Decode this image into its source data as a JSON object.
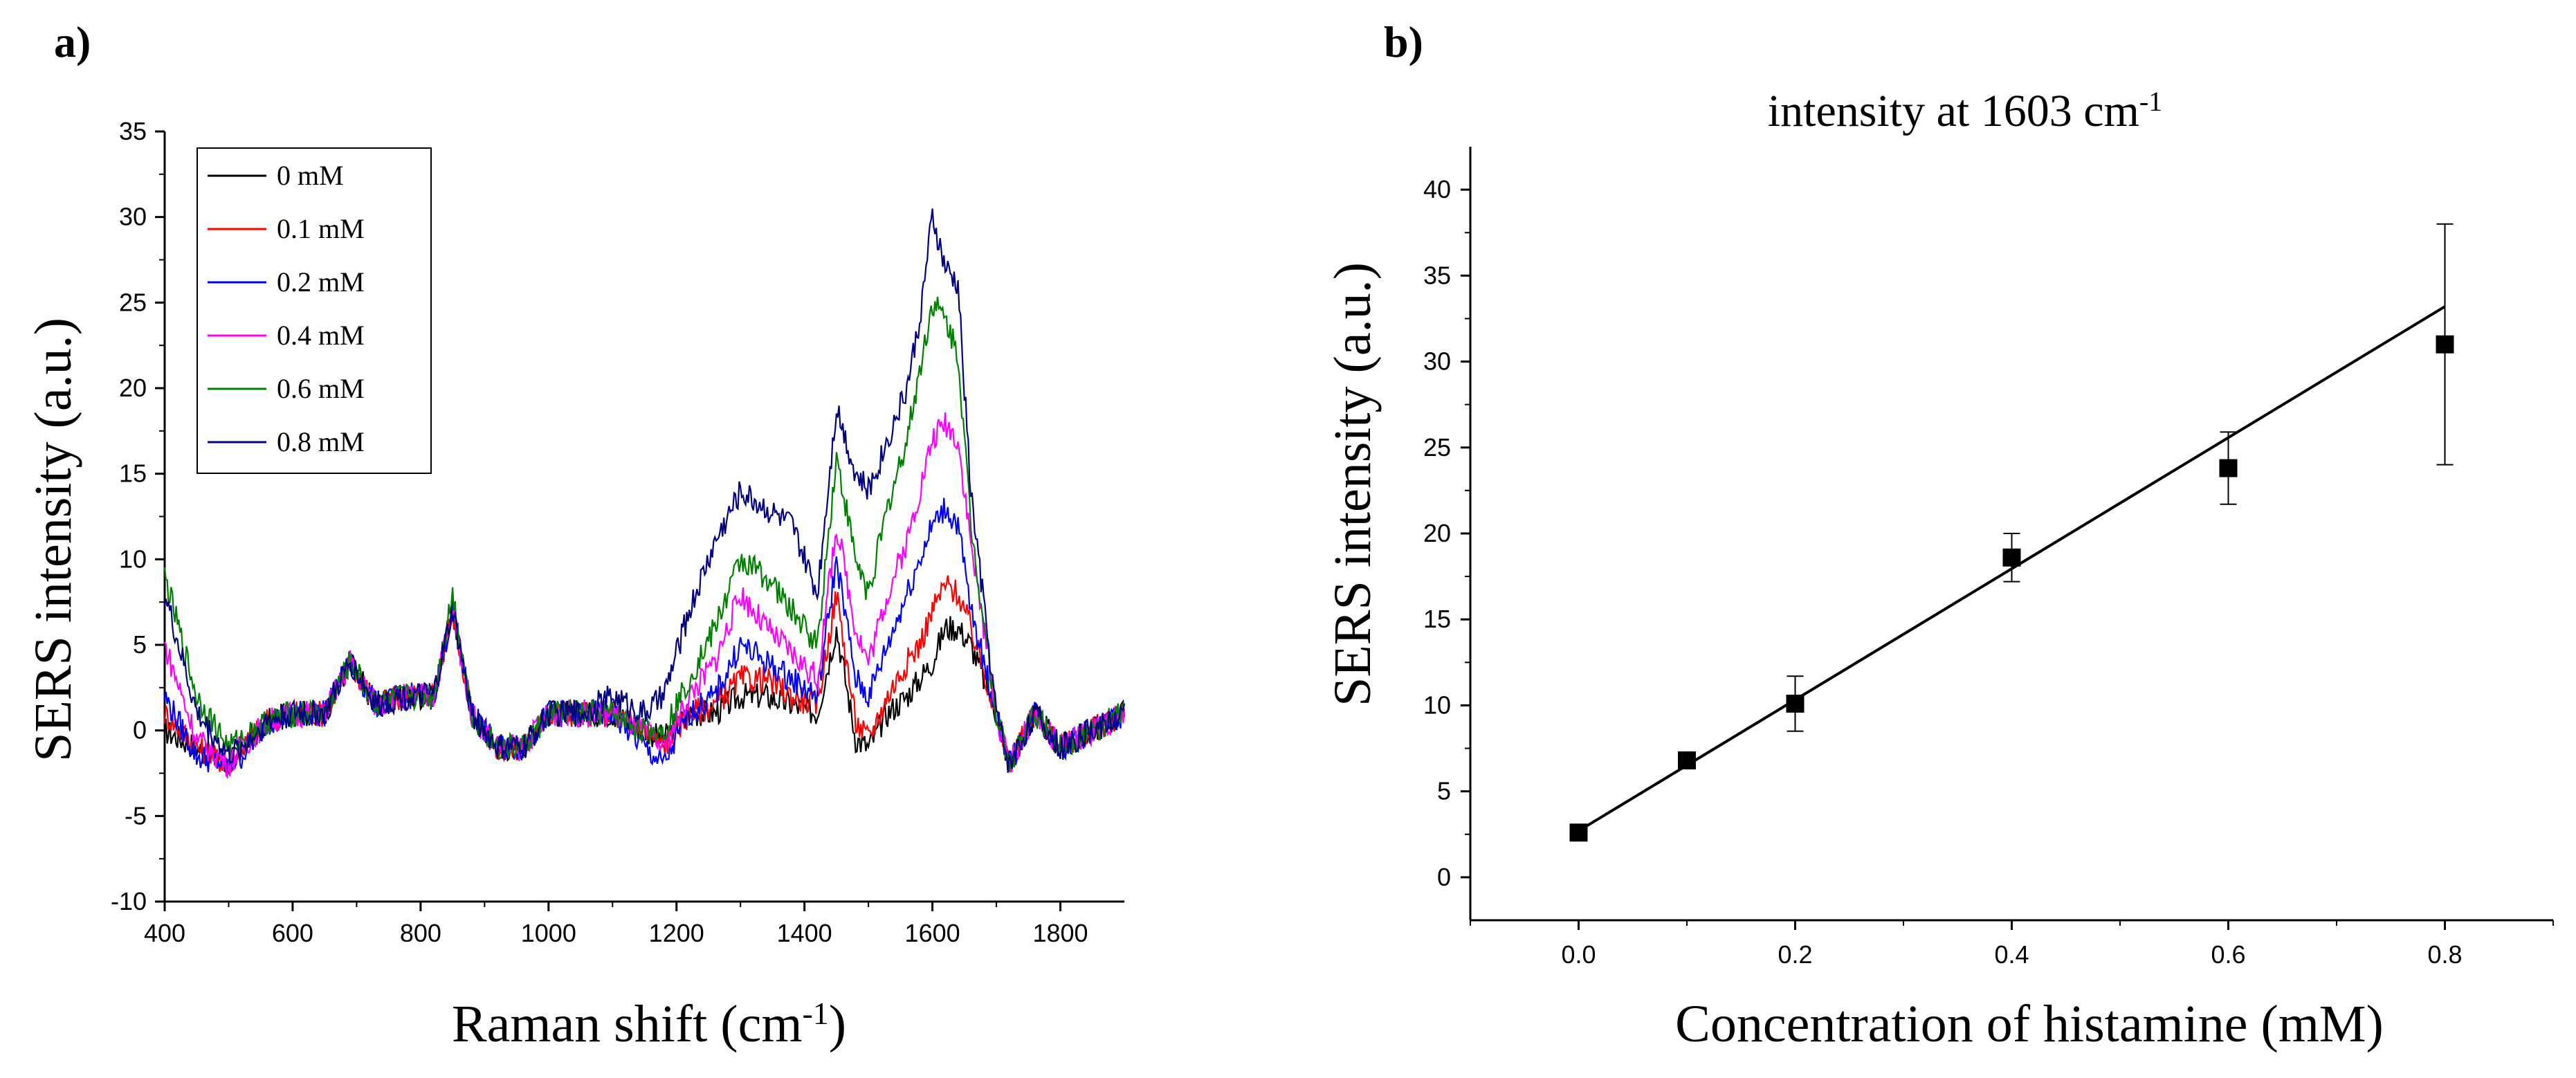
{
  "chart_data": [
    {
      "panel_label": "a)",
      "type": "line",
      "xlabel": "Raman shift (cm-1)",
      "xlabel_main": "Raman shift (cm",
      "xlabel_sup": "-1",
      "xlabel_end": ")",
      "ylabel": "SERS intensity (a.u.)",
      "xlim": [
        400,
        1900
      ],
      "ylim": [
        -10,
        35
      ],
      "xticks": [
        400,
        600,
        800,
        1000,
        1200,
        1400,
        1600,
        1800
      ],
      "yticks": [
        -10,
        -5,
        0,
        5,
        10,
        15,
        20,
        25,
        30,
        35
      ],
      "legend_position": "top-left",
      "x": [
        400,
        450,
        500,
        520,
        560,
        600,
        650,
        690,
        730,
        780,
        820,
        850,
        880,
        920,
        960,
        1000,
        1050,
        1100,
        1150,
        1180,
        1220,
        1260,
        1300,
        1340,
        1380,
        1420,
        1450,
        1480,
        1500,
        1530,
        1560,
        1580,
        1600,
        1620,
        1640,
        1660,
        1700,
        1720,
        1760,
        1800,
        1850,
        1900
      ],
      "series": [
        {
          "name": "0 mM",
          "color": "#000000",
          "values": [
            0,
            -1,
            -2,
            -1,
            0.5,
            1,
            1,
            4,
            1.5,
            2,
            2,
            7,
            1,
            -1,
            -1,
            1,
            1,
            1,
            0,
            -0.5,
            1,
            1,
            2,
            2,
            1.5,
            1,
            6,
            -0.5,
            -1,
            1,
            2,
            3,
            4,
            6,
            6,
            5,
            1,
            -2,
            1,
            -1,
            0,
            1
          ]
        },
        {
          "name": "0.1 mM",
          "color": "#ff0000",
          "values": [
            1,
            -1,
            -2,
            -1,
            0.5,
            1,
            1,
            4,
            1.5,
            2,
            2,
            7,
            1,
            -1,
            -1,
            1,
            1,
            1,
            0,
            -1,
            1,
            1.5,
            3,
            3,
            2,
            1.5,
            8,
            0.5,
            -0.5,
            2,
            4,
            5,
            7,
            8.5,
            8,
            6,
            1,
            -2,
            1,
            -1,
            0,
            1
          ]
        },
        {
          "name": "0.2 mM",
          "color": "#0000ff",
          "values": [
            2,
            -1.5,
            -2,
            -1.5,
            0.5,
            1,
            1,
            4,
            1.5,
            2,
            2,
            7,
            1,
            -1,
            -1,
            1,
            1,
            1,
            -1,
            -2,
            1,
            2,
            5,
            4,
            3,
            2,
            10,
            3,
            2,
            5,
            8,
            10,
            12,
            13,
            12,
            7,
            1,
            -2,
            1,
            -1,
            0,
            1
          ]
        },
        {
          "name": "0.4 mM",
          "color": "#ff00ff",
          "values": [
            5,
            -0.5,
            -2,
            -1,
            0.5,
            1,
            1,
            4,
            1.5,
            2,
            2,
            7,
            1,
            -1,
            -1,
            1,
            1,
            1,
            0,
            -1,
            2,
            4,
            8,
            6,
            4.5,
            3,
            12,
            6,
            4,
            8,
            11,
            14,
            17,
            18,
            17,
            11,
            1,
            -2,
            1,
            -1,
            0,
            1
          ]
        },
        {
          "name": "0.6 mM",
          "color": "#008000",
          "values": [
            9,
            2,
            -1,
            -0.5,
            0.5,
            1,
            1,
            4,
            1.5,
            2,
            2,
            8,
            1,
            -1,
            -1,
            1,
            1,
            1,
            0,
            0,
            3,
            6,
            10,
            9,
            7,
            5,
            16,
            10,
            8,
            13,
            17,
            21,
            25,
            24,
            22,
            12,
            1,
            -2,
            1,
            -1,
            0,
            1
          ]
        },
        {
          "name": "0.8 mM",
          "color": "#000080",
          "values": [
            8,
            1,
            -1.5,
            -1,
            0.5,
            1,
            1,
            4,
            1.5,
            2,
            2,
            7,
            1,
            -1,
            -1,
            1,
            1,
            2,
            1,
            2,
            7,
            11,
            14,
            13,
            12,
            8,
            19,
            15,
            14,
            17,
            20,
            24,
            30,
            27,
            26,
            14,
            1,
            -2,
            1,
            -1,
            0,
            1
          ]
        }
      ]
    },
    {
      "panel_label": "b)",
      "type": "scatter",
      "title": "intensity at 1603 cm-1",
      "title_main": "intensity at 1603 cm",
      "title_sup": "-1",
      "xlabel": "Concentration of histamine (mM)",
      "ylabel": "SERS intensity (a.u.)",
      "xlim": [
        -0.1,
        0.9
      ],
      "ylim": [
        -2.5,
        42.5
      ],
      "xticks": [
        "0.0",
        "0.2",
        "0.4",
        "0.6",
        "0.8"
      ],
      "yticks": [
        0,
        5,
        10,
        15,
        20,
        25,
        30,
        35,
        40
      ],
      "x": [
        0.0,
        0.1,
        0.2,
        0.4,
        0.6,
        0.8
      ],
      "y": [
        2.6,
        6.8,
        10.1,
        18.6,
        23.8,
        31.0
      ],
      "error": [
        0,
        0,
        1.6,
        1.4,
        2.1,
        7.0
      ],
      "fit_line": {
        "x": [
          0.0,
          0.8
        ],
        "y": [
          2.7,
          33.2
        ]
      }
    }
  ]
}
